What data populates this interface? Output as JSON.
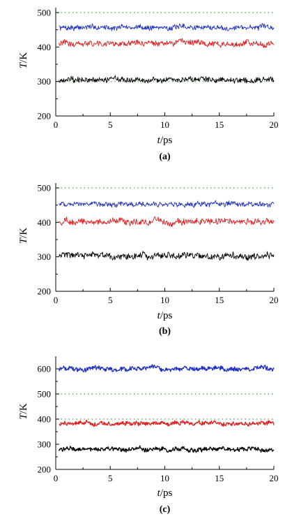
{
  "chart_data": [
    {
      "type": "line",
      "panel_label": "(a)",
      "xlabel": {
        "var": "t",
        "unit": "/ps"
      },
      "ylabel": {
        "var": "T",
        "unit": "/K"
      },
      "xlim": [
        0,
        20
      ],
      "ylim": [
        200,
        500
      ],
      "xticks": [
        "0",
        "5",
        "10",
        "15",
        "20"
      ],
      "yticks": [
        "200",
        "300",
        "400",
        "500"
      ],
      "reference_lines": [
        {
          "y": 500,
          "color": "#2fb52f",
          "style": "dotted"
        },
        {
          "y": 300,
          "color": "#2fb52f",
          "style": "dotted"
        }
      ],
      "series": [
        {
          "color": "#1f2fbf",
          "x_range": [
            0.3,
            20
          ],
          "mean": 457,
          "fluctuation": 8
        },
        {
          "color": "#e02020",
          "x_range": [
            0.3,
            20
          ],
          "mean": 410,
          "fluctuation": 9
        },
        {
          "color": "#000000",
          "x_range": [
            0.3,
            20
          ],
          "mean": 305,
          "fluctuation": 9
        }
      ]
    },
    {
      "type": "line",
      "panel_label": "(b)",
      "xlabel": {
        "var": "t",
        "unit": "/ps"
      },
      "ylabel": {
        "var": "T",
        "unit": "/K"
      },
      "xlim": [
        0,
        20
      ],
      "ylim": [
        200,
        500
      ],
      "xticks": [
        "0",
        "5",
        "10",
        "15",
        "20"
      ],
      "yticks": [
        "200",
        "300",
        "400",
        "500"
      ],
      "reference_lines": [
        {
          "y": 500,
          "color": "#2fb52f",
          "style": "dotted"
        }
      ],
      "series": [
        {
          "color": "#1f2fbf",
          "x_range": [
            0.3,
            20
          ],
          "mean": 453,
          "fluctuation": 8
        },
        {
          "color": "#e02020",
          "x_range": [
            0.3,
            20
          ],
          "mean": 402,
          "fluctuation": 10
        },
        {
          "color": "#000000",
          "x_range": [
            0.3,
            20
          ],
          "mean": 303,
          "fluctuation": 10
        }
      ]
    },
    {
      "type": "line",
      "panel_label": "(c)",
      "xlabel": {
        "var": "t",
        "unit": "/ps"
      },
      "ylabel": {
        "var": "T",
        "unit": "/K"
      },
      "xlim": [
        0,
        20
      ],
      "ylim": [
        200,
        650
      ],
      "xticks": [
        "0",
        "5",
        "10",
        "15",
        "20"
      ],
      "yticks": [
        "200",
        "300",
        "400",
        "500",
        "600"
      ],
      "reference_lines": [
        {
          "y": 500,
          "color": "#2fb52f",
          "style": "dotted"
        },
        {
          "y": 400,
          "color": "#2fb52f",
          "style": "dotted"
        }
      ],
      "series": [
        {
          "color": "#1f2fbf",
          "x_range": [
            0.3,
            20
          ],
          "mean": 600,
          "fluctuation": 10
        },
        {
          "color": "#e02020",
          "x_range": [
            0.3,
            20
          ],
          "mean": 383,
          "fluctuation": 9
        },
        {
          "color": "#000000",
          "x_range": [
            0.3,
            20
          ],
          "mean": 280,
          "fluctuation": 9
        }
      ]
    }
  ]
}
